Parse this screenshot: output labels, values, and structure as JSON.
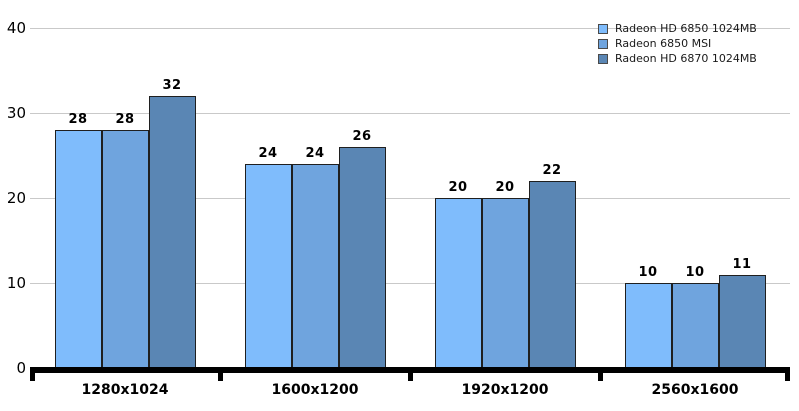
{
  "chart_data": {
    "type": "bar",
    "title": "",
    "xlabel": "",
    "ylabel": "",
    "categories": [
      "1280x1024",
      "1600x1200",
      "1920x1200",
      "2560x1600"
    ],
    "series": [
      {
        "name": "Radeon HD 6850 1024MB",
        "color": "#7FBCFC",
        "values": [
          28,
          24,
          20,
          10
        ]
      },
      {
        "name": "Radeon 6850 MSI",
        "color": "#6FA4DE",
        "values": [
          28,
          24,
          20,
          10
        ]
      },
      {
        "name": "Radeon HD 6870 1024MB",
        "color": "#5A86B4",
        "values": [
          32,
          26,
          22,
          11
        ]
      }
    ],
    "ylim": [
      0,
      40
    ],
    "yticks": [
      0,
      10,
      20,
      30,
      40
    ],
    "grid": "horizontal",
    "legend_position": "top-right",
    "bar_labels": true
  },
  "colors": {
    "background": "#FFFFFF",
    "gridline": "#C9C9C9",
    "axis": "#000000",
    "bar_border": "#1F1F1F",
    "value_label": "#000000",
    "legend_text": "#1A1A1A"
  }
}
